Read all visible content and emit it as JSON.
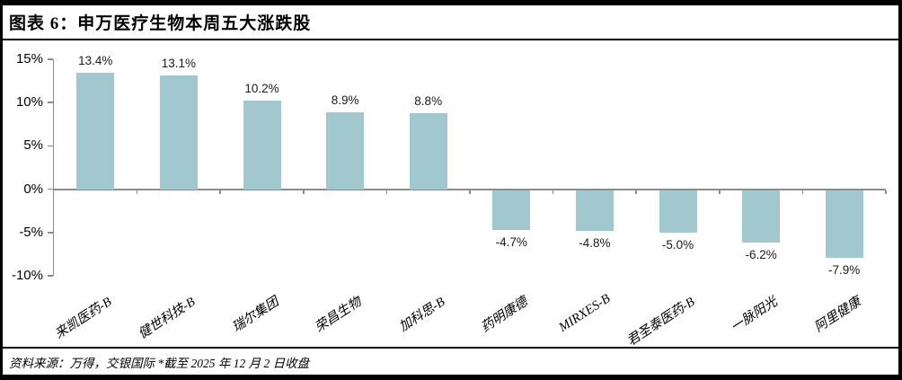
{
  "header": {
    "title": "图表 6：申万医疗生物本周五大涨跌股"
  },
  "footer": {
    "source_note": "资料来源：万得，交银国际  *截至 2025 年 12 月 2 日收盘"
  },
  "chart_data": {
    "type": "bar",
    "title": "申万医疗生物本周五大涨跌股",
    "categories": [
      "来凯医药-B",
      "健世科技-B",
      "瑞尔集团",
      "荣昌生物",
      "加科思-B",
      "药明康德",
      "MIRXES-B",
      "君圣泰医药-B",
      "一脉阳光",
      "阿里健康"
    ],
    "values": [
      13.4,
      13.1,
      10.2,
      8.9,
      8.8,
      -4.7,
      -4.8,
      -5.0,
      -6.2,
      -7.9
    ],
    "data_labels": [
      "13.4%",
      "13.1%",
      "10.2%",
      "8.9%",
      "8.8%",
      "-4.7%",
      "-4.8%",
      "-5.0%",
      "-6.2%",
      "-7.9%"
    ],
    "xlabel": "",
    "ylabel": "",
    "ylim": [
      -10,
      15
    ],
    "yticks": [
      15,
      10,
      5,
      0,
      -5,
      -10
    ],
    "ytick_labels": [
      "15%",
      "10%",
      "5%",
      "0%",
      "-5%",
      "-10%"
    ],
    "grid": false,
    "legend": "none",
    "bar_color": "#a2c8cf",
    "axis_color": "#8c8c8c",
    "label_color": "#1a1a1a"
  }
}
